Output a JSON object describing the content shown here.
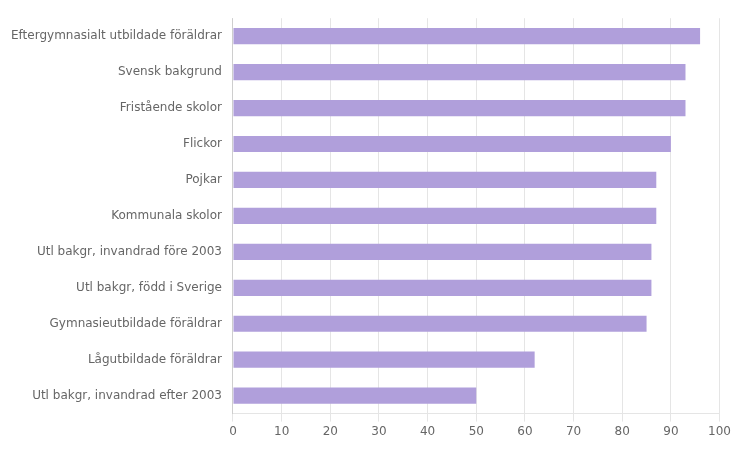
{
  "chart_data": {
    "type": "bar",
    "orientation": "horizontal",
    "categories": [
      "Eftergymnasialt utbildade föräldrar",
      "Svensk bakgrund",
      "Fristående skolor",
      "Flickor",
      "Pojkar",
      "Kommunala skolor",
      "Utl bakgr, invandrad före 2003",
      "Utl bakgr, född i Sverige",
      "Gymnasieutbildade föräldrar",
      "Lågutbildade föräldrar",
      "Utl bakgr, invandrad efter 2003"
    ],
    "values": [
      96,
      93,
      93,
      90,
      87,
      87,
      86,
      86,
      85,
      62,
      50
    ],
    "color": "#b09fdb",
    "xlim": [
      0,
      100
    ],
    "xticks": [
      0,
      10,
      20,
      30,
      40,
      50,
      60,
      70,
      80,
      90,
      100
    ],
    "grid": true
  }
}
